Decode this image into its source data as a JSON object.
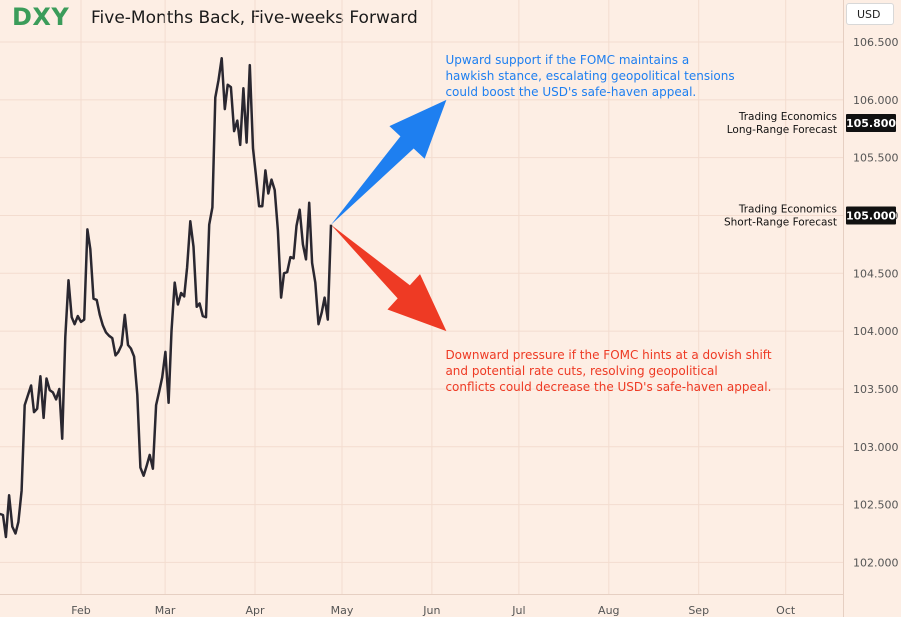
{
  "header": {
    "ticker": "DXY",
    "title": "Five-Months Back, Five-weeks Forward",
    "currency_button": "USD"
  },
  "colors": {
    "background": "#fdeee4",
    "grid": "#f3dccf",
    "line": "#2a2730",
    "ticker": "#3b9c5a",
    "up_arrow": "#1e7ff0",
    "down_arrow": "#ee3a24",
    "badge_bg": "#111111",
    "badge_text": "#ffffff"
  },
  "chart_data": {
    "type": "line",
    "title": "Five-Months Back, Five-weeks Forward",
    "xlabel": "",
    "ylabel": "",
    "ylim": [
      101.7,
      106.8
    ],
    "y_ticks": [
      "106.500",
      "106.000",
      "105.500",
      "105.000",
      "104.500",
      "104.000",
      "103.500",
      "103.000",
      "102.500",
      "102.000"
    ],
    "x_tick_labels": [
      {
        "label": "Feb",
        "t": 0
      },
      {
        "label": "Mar",
        "t": 29
      },
      {
        "label": "Apr",
        "t": 60
      },
      {
        "label": "May",
        "t": 90
      },
      {
        "label": "Jun",
        "t": 121
      },
      {
        "label": "Jul",
        "t": 151
      },
      {
        "label": "Aug",
        "t": 182
      },
      {
        "label": "Sep",
        "t": 213
      },
      {
        "label": "Oct",
        "t": 243
      }
    ],
    "series": [
      {
        "name": "DXY",
        "points": [
          [
            -28.0,
            102.42
          ],
          [
            -26.9,
            102.41
          ],
          [
            -25.9,
            102.22
          ],
          [
            -24.8,
            102.58
          ],
          [
            -23.7,
            102.31
          ],
          [
            -22.6,
            102.25
          ],
          [
            -21.6,
            102.35
          ],
          [
            -20.5,
            102.62
          ],
          [
            -19.4,
            103.36
          ],
          [
            -17.2,
            103.53
          ],
          [
            -16.2,
            103.3
          ],
          [
            -15.1,
            103.33
          ],
          [
            -14.0,
            103.61
          ],
          [
            -12.9,
            103.25
          ],
          [
            -11.9,
            103.59
          ],
          [
            -10.8,
            103.49
          ],
          [
            -9.7,
            103.47
          ],
          [
            -8.6,
            103.41
          ],
          [
            -7.5,
            103.5
          ],
          [
            -6.5,
            103.07
          ],
          [
            -5.4,
            103.95
          ],
          [
            -4.3,
            104.44
          ],
          [
            -3.2,
            104.12
          ],
          [
            -2.2,
            104.06
          ],
          [
            -1.1,
            104.13
          ],
          [
            0.0,
            104.08
          ],
          [
            1.1,
            104.1
          ],
          [
            2.2,
            104.88
          ],
          [
            3.2,
            104.71
          ],
          [
            4.3,
            104.28
          ],
          [
            5.4,
            104.27
          ],
          [
            6.5,
            104.14
          ],
          [
            7.5,
            104.05
          ],
          [
            8.6,
            103.99
          ],
          [
            9.7,
            103.96
          ],
          [
            10.8,
            103.94
          ],
          [
            11.9,
            103.79
          ],
          [
            12.9,
            103.82
          ],
          [
            14.0,
            103.88
          ],
          [
            15.1,
            104.14
          ],
          [
            16.2,
            103.88
          ],
          [
            17.2,
            103.85
          ],
          [
            18.3,
            103.78
          ],
          [
            19.4,
            103.45
          ],
          [
            20.5,
            102.82
          ],
          [
            21.6,
            102.75
          ],
          [
            22.6,
            102.83
          ],
          [
            23.7,
            102.93
          ],
          [
            24.8,
            102.81
          ],
          [
            25.9,
            103.36
          ],
          [
            26.9,
            103.47
          ],
          [
            28.0,
            103.6
          ],
          [
            29.1,
            103.82
          ],
          [
            30.2,
            103.38
          ],
          [
            31.2,
            104.0
          ],
          [
            32.3,
            104.42
          ],
          [
            33.4,
            104.23
          ],
          [
            34.5,
            104.33
          ],
          [
            35.6,
            104.3
          ],
          [
            36.6,
            104.55
          ],
          [
            37.7,
            104.95
          ],
          [
            38.8,
            104.73
          ],
          [
            39.9,
            104.21
          ],
          [
            40.9,
            104.24
          ],
          [
            42.0,
            104.13
          ],
          [
            43.1,
            104.12
          ],
          [
            44.2,
            104.92
          ],
          [
            45.3,
            105.07
          ],
          [
            46.3,
            106.02
          ],
          [
            47.4,
            106.17
          ],
          [
            48.5,
            106.36
          ],
          [
            49.6,
            105.92
          ],
          [
            50.6,
            106.13
          ],
          [
            51.7,
            106.11
          ],
          [
            52.8,
            105.73
          ],
          [
            53.9,
            105.82
          ],
          [
            54.9,
            105.61
          ],
          [
            56.0,
            106.1
          ],
          [
            57.1,
            105.63
          ],
          [
            58.2,
            106.3
          ],
          [
            59.3,
            105.58
          ],
          [
            60.3,
            105.35
          ],
          [
            61.4,
            105.08
          ],
          [
            62.5,
            105.08
          ],
          [
            63.6,
            105.39
          ],
          [
            64.6,
            105.19
          ],
          [
            65.7,
            105.31
          ],
          [
            66.8,
            105.22
          ],
          [
            67.9,
            104.87
          ],
          [
            69.0,
            104.29
          ],
          [
            70.0,
            104.5
          ],
          [
            71.1,
            104.51
          ],
          [
            72.2,
            104.64
          ],
          [
            73.3,
            104.63
          ],
          [
            74.3,
            104.91
          ],
          [
            75.4,
            105.05
          ],
          [
            76.5,
            104.75
          ],
          [
            77.6,
            104.62
          ],
          [
            78.7,
            105.11
          ],
          [
            79.7,
            104.59
          ],
          [
            80.8,
            104.42
          ],
          [
            81.9,
            104.06
          ],
          [
            83.0,
            104.16
          ],
          [
            84.0,
            104.29
          ],
          [
            85.1,
            104.1
          ],
          [
            86.2,
            104.92
          ]
        ]
      }
    ],
    "forecasts": [
      {
        "name": "Trading Economics Long-Range Forecast",
        "line1": "Trading Economics",
        "line2": "Long-Range Forecast",
        "value": 105.8,
        "label": "105.800"
      },
      {
        "name": "Trading Economics Short-Range Forecast",
        "line1": "Trading Economics",
        "line2": "Short-Range Forecast",
        "value": 105.0,
        "label": "105.000"
      }
    ],
    "arrows": [
      {
        "name": "upward-scenario",
        "from": [
          86.2,
          104.92
        ],
        "to": [
          126.0,
          106.0
        ]
      },
      {
        "name": "downward-scenario",
        "from": [
          86.2,
          104.92
        ],
        "to": [
          126.0,
          104.0
        ]
      }
    ],
    "annotations": [
      {
        "name": "upward-annotation",
        "color": "#1e7ff0",
        "anchor": [
          0.5,
          106.5
        ],
        "lines": [
          "Upward support if the FOMC maintains a",
          "hawkish stance, escalating geopolitical tensions",
          "could boost the USD's safe-haven appeal."
        ]
      },
      {
        "name": "downward-annotation",
        "color": "#ee3a24",
        "anchor": [
          0.5,
          103.95
        ],
        "lines": [
          "Downward pressure if the FOMC hints at a dovish shift",
          "and potential rate cuts, resolving geopolitical",
          "conflicts could decrease the USD's safe-haven appeal."
        ]
      }
    ]
  }
}
